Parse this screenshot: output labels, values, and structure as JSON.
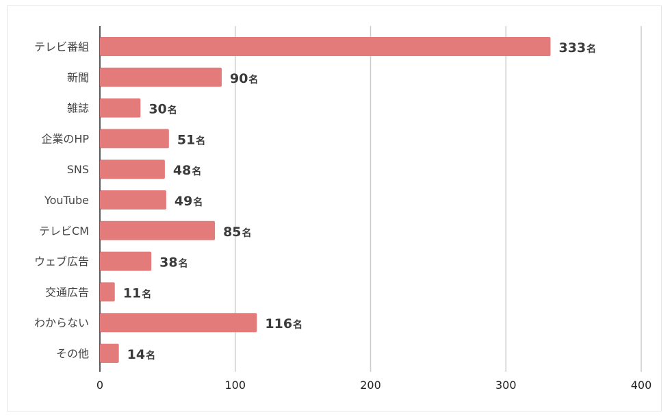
{
  "chart_data": {
    "type": "bar",
    "orientation": "horizontal",
    "categories": [
      "テレビ番組",
      "新聞",
      "雑誌",
      "企業のHP",
      "SNS",
      "YouTube",
      "テレビCM",
      "ウェブ広告",
      "交通広告",
      "わからない",
      "その他"
    ],
    "values": [
      333,
      90,
      30,
      51,
      48,
      49,
      85,
      38,
      11,
      116,
      14
    ],
    "value_unit": "名",
    "xlim": [
      0,
      400
    ],
    "x_ticks": [
      "0",
      "100",
      "200",
      "300",
      "400"
    ],
    "grid": "vertical",
    "bar_color": "#e47b7b",
    "grid_color": "#cccccc",
    "axis_color": "#222222"
  }
}
